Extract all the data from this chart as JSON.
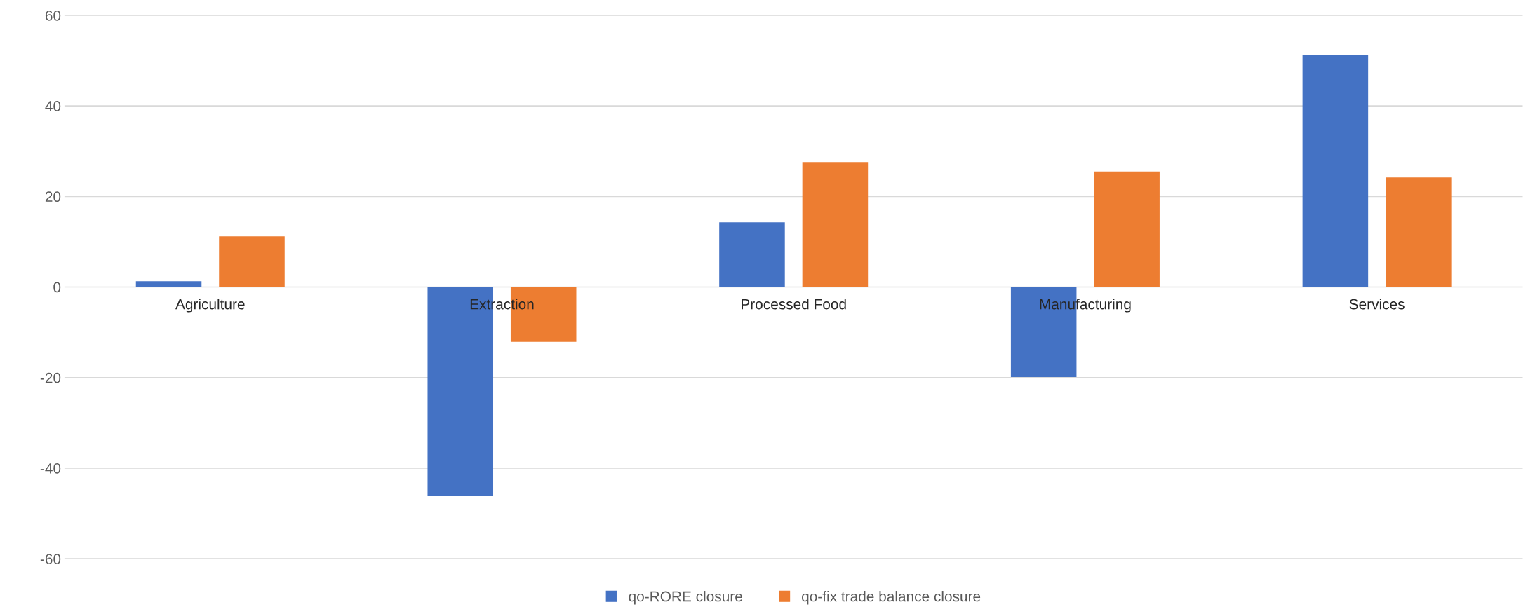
{
  "chart_data": {
    "type": "bar",
    "categories": [
      "Agriculture",
      "Extraction",
      "Processed Food",
      "Manufacturing",
      "Services"
    ],
    "series": [
      {
        "name": "qo-RORE closure",
        "color": "#4472c4",
        "values": [
          1.3,
          -46.2,
          14.3,
          -19.9,
          51.2
        ]
      },
      {
        "name": "qo-fix trade balance closure",
        "color": "#ed7d31",
        "values": [
          11.2,
          -12.1,
          27.6,
          25.5,
          24.2
        ]
      }
    ],
    "ylim": [
      -60,
      60
    ],
    "yticks": [
      -60,
      -40,
      -20,
      0,
      20,
      40,
      60
    ],
    "grid": "y",
    "legend": "bottom"
  }
}
